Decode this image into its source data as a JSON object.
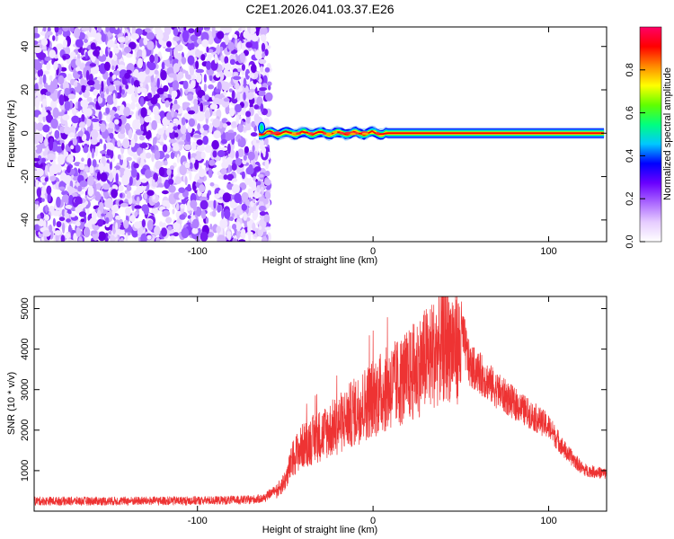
{
  "title": "C2E1.2026.041.03.37.E26",
  "chart_data": [
    {
      "type": "heatmap",
      "xlabel": "Height of straight line (km)",
      "ylabel": "Frequency (Hz)",
      "xlim": [
        -193,
        133
      ],
      "ylim": [
        -50,
        49
      ],
      "xticks": [
        -100,
        0,
        100
      ],
      "yticks": [
        -40,
        -20,
        0,
        20,
        40
      ],
      "grid": false,
      "noise_region_x": [
        -193,
        -62
      ],
      "signal_band_hz": 0,
      "signal_start_x": -65,
      "colorbar": {
        "label": "Normalized spectral amplitude",
        "range": [
          0,
          1
        ],
        "ticks": [
          0.0,
          0.2,
          0.4,
          0.6,
          0.8
        ],
        "tick_labels": [
          "0.0",
          "0.2",
          "0.4",
          "0.6",
          "0.8"
        ],
        "colors": [
          "#ffffff",
          "#e6ccff",
          "#aa66ff",
          "#6a00ff",
          "#0000ff",
          "#00c8ff",
          "#00ff7f",
          "#60ff00",
          "#ffff00",
          "#ff8800",
          "#ff0000",
          "#ff0066"
        ]
      }
    },
    {
      "type": "line",
      "xlabel": "Height of straight line (km)",
      "ylabel": "SNR (10 * v/v)",
      "xlim": [
        -193,
        133
      ],
      "ylim": [
        0,
        5300
      ],
      "xticks": [
        -100,
        0,
        100
      ],
      "yticks": [
        1000,
        2000,
        3000,
        4000,
        5000
      ],
      "color": "#ee3333",
      "grid": false,
      "envelope": {
        "x": [
          -193,
          -150,
          -100,
          -70,
          -62,
          -55,
          -50,
          -45,
          -40,
          -30,
          -20,
          -10,
          0,
          10,
          20,
          30,
          40,
          45,
          50,
          55,
          60,
          70,
          80,
          90,
          100,
          110,
          120,
          133
        ],
        "y": [
          250,
          250,
          260,
          280,
          320,
          550,
          900,
          1600,
          1900,
          2200,
          2500,
          2900,
          3300,
          3600,
          3900,
          4400,
          4800,
          4900,
          4700,
          3700,
          3550,
          3100,
          2750,
          2450,
          2150,
          1500,
          1050,
          950
        ]
      }
    }
  ]
}
